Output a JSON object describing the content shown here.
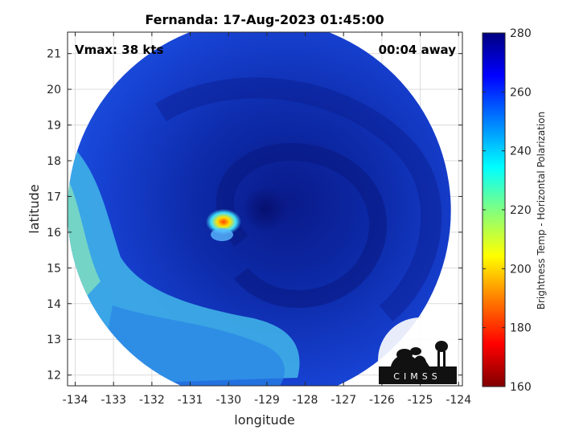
{
  "chart_data": {
    "type": "heatmap",
    "title": "Fernanda: 17-Aug-2023 01:45:00",
    "xlabel": "longitude",
    "ylabel": "latitude",
    "xlim": [
      -134.2,
      -123.9
    ],
    "ylim": [
      11.7,
      21.6
    ],
    "xticks": [
      -134,
      -133,
      -132,
      -131,
      -130,
      -129,
      -128,
      -127,
      -126,
      -125,
      -124
    ],
    "yticks": [
      12,
      13,
      14,
      15,
      16,
      17,
      18,
      19,
      20,
      21
    ],
    "grid": true,
    "annotations": {
      "vmax": "Vmax: 38 kts",
      "time_offset": "00:04 away"
    },
    "storm_center": {
      "lon": -129.0,
      "lat": 16.7
    },
    "swath": {
      "center_lon": -129.2,
      "center_lat": 16.6,
      "radius_deg": 5.0
    },
    "colorbar": {
      "label": "Brightness Temp - Horizontal Polarization",
      "range": [
        160,
        280
      ],
      "ticks": [
        160,
        180,
        200,
        220,
        240,
        260,
        280
      ],
      "colormap": [
        "#800000",
        "#ff0000",
        "#ff8000",
        "#ffff00",
        "#80ff80",
        "#00ffff",
        "#0080ff",
        "#0000ff",
        "#000080"
      ]
    },
    "logo": {
      "text": "CIMSS"
    }
  }
}
